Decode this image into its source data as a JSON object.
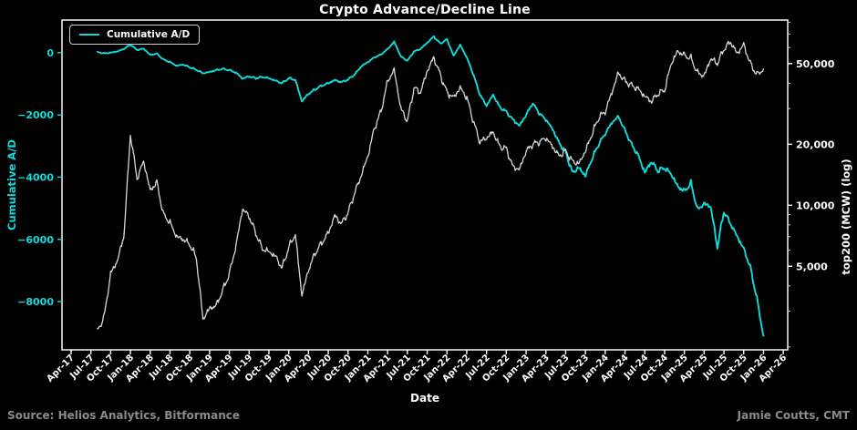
{
  "title": "Crypto Advance/Decline Line",
  "colors": {
    "background": "#000000",
    "cyan": "#0edcdc",
    "white_series": "#d8d8d8",
    "spine": "#e8e8e8",
    "muted_gray": "#8a8a8a"
  },
  "legend": {
    "items": [
      {
        "label": "Cumulative A/D",
        "color": "#0edcdc"
      }
    ]
  },
  "footer": {
    "source": "Source: Helios Analytics, Bitformance",
    "credit": "Jamie Coutts, CMT"
  },
  "chart_data": {
    "type": "line",
    "title": "Crypto Advance/Decline Line",
    "xlabel": "Date",
    "grid": false,
    "legend_position": "upper left",
    "x_axis": {
      "min": 2017.135,
      "max": 2026.306,
      "ticks": [
        [
          2017.25,
          "Apr-17"
        ],
        [
          2017.5,
          "Jul-17"
        ],
        [
          2017.75,
          "Oct-17"
        ],
        [
          2018.0,
          "Jan-18"
        ],
        [
          2018.25,
          "Apr-18"
        ],
        [
          2018.5,
          "Jul-18"
        ],
        [
          2018.75,
          "Oct-18"
        ],
        [
          2019.0,
          "Jan-19"
        ],
        [
          2019.25,
          "Apr-19"
        ],
        [
          2019.5,
          "Jul-19"
        ],
        [
          2019.75,
          "Oct-19"
        ],
        [
          2020.0,
          "Jan-20"
        ],
        [
          2020.25,
          "Apr-20"
        ],
        [
          2020.5,
          "Jul-20"
        ],
        [
          2020.75,
          "Oct-20"
        ],
        [
          2021.0,
          "Jan-21"
        ],
        [
          2021.25,
          "Apr-21"
        ],
        [
          2021.5,
          "Jul-21"
        ],
        [
          2021.75,
          "Oct-21"
        ],
        [
          2022.0,
          "Jan-22"
        ],
        [
          2022.25,
          "Apr-22"
        ],
        [
          2022.5,
          "Jul-22"
        ],
        [
          2022.75,
          "Oct-22"
        ],
        [
          2023.0,
          "Jan-23"
        ],
        [
          2023.25,
          "Apr-23"
        ],
        [
          2023.5,
          "Jul-23"
        ],
        [
          2023.75,
          "Oct-23"
        ],
        [
          2024.0,
          "Jan-24"
        ],
        [
          2024.25,
          "Apr-24"
        ],
        [
          2024.5,
          "Jul-24"
        ],
        [
          2024.75,
          "Oct-24"
        ],
        [
          2025.0,
          "Jan-25"
        ],
        [
          2025.25,
          "Apr-25"
        ],
        [
          2025.5,
          "Jul-25"
        ],
        [
          2025.75,
          "Oct-25"
        ],
        [
          2026.0,
          "Jan-26"
        ],
        [
          2026.25,
          "Apr-26"
        ]
      ]
    },
    "left_axis": {
      "label": "Cumulative A/D",
      "color": "#0edcdc",
      "scale": "linear",
      "min": -9550,
      "max": 1050,
      "ticks": [
        [
          0,
          "0"
        ],
        [
          -2000,
          "−2000"
        ],
        [
          -4000,
          "−4000"
        ],
        [
          -6000,
          "−6000"
        ],
        [
          -8000,
          "−8000"
        ]
      ]
    },
    "right_axis": {
      "label": "top200 (MCW) (log)",
      "color": "#ffffff",
      "scale": "log",
      "min": 1935,
      "max": 82000,
      "ticks": [
        [
          50000,
          "50,000"
        ],
        [
          20000,
          "20,000"
        ],
        [
          10000,
          "10,000"
        ],
        [
          5000,
          "5,000"
        ]
      ]
    },
    "series": [
      {
        "name": "Cumulative A/D",
        "axis": "left",
        "color": "#0edcdc",
        "width": 1.9,
        "points": [
          [
            "2017-08",
            20
          ],
          [
            "2017-09",
            -20
          ],
          [
            "2017-10",
            0
          ],
          [
            "2017-11",
            40
          ],
          [
            "2017-12",
            120
          ],
          [
            "2018-01",
            260
          ],
          [
            "2018-02",
            90
          ],
          [
            "2018-03",
            130
          ],
          [
            "2018-04",
            -70
          ],
          [
            "2018-05",
            -30
          ],
          [
            "2018-06",
            -220
          ],
          [
            "2018-07",
            -300
          ],
          [
            "2018-08",
            -420
          ],
          [
            "2018-09",
            -380
          ],
          [
            "2018-10",
            -470
          ],
          [
            "2018-11",
            -550
          ],
          [
            "2018-12",
            -660
          ],
          [
            "2019-01",
            -620
          ],
          [
            "2019-02",
            -560
          ],
          [
            "2019-03",
            -520
          ],
          [
            "2019-04",
            -560
          ],
          [
            "2019-05",
            -640
          ],
          [
            "2019-06",
            -830
          ],
          [
            "2019-07",
            -760
          ],
          [
            "2019-08",
            -820
          ],
          [
            "2019-09",
            -780
          ],
          [
            "2019-10",
            -820
          ],
          [
            "2019-11",
            -900
          ],
          [
            "2019-12",
            -980
          ],
          [
            "2020-01",
            -820
          ],
          [
            "2020-02",
            -870
          ],
          [
            "2020-03",
            -1560
          ],
          [
            "2020-04",
            -1320
          ],
          [
            "2020-05",
            -1180
          ],
          [
            "2020-06",
            -1060
          ],
          [
            "2020-07",
            -980
          ],
          [
            "2020-08",
            -880
          ],
          [
            "2020-09",
            -950
          ],
          [
            "2020-10",
            -860
          ],
          [
            "2020-11",
            -700
          ],
          [
            "2020-12",
            -440
          ],
          [
            "2021-01",
            -300
          ],
          [
            "2021-02",
            -150
          ],
          [
            "2021-03",
            -60
          ],
          [
            "2021-04",
            120
          ],
          [
            "2021-05",
            350
          ],
          [
            "2021-06",
            -120
          ],
          [
            "2021-07",
            -260
          ],
          [
            "2021-08",
            40
          ],
          [
            "2021-09",
            120
          ],
          [
            "2021-10",
            320
          ],
          [
            "2021-11",
            520
          ],
          [
            "2021-12",
            290
          ],
          [
            "2022-01",
            430
          ],
          [
            "2022-02",
            -100
          ],
          [
            "2022-03",
            250
          ],
          [
            "2022-04",
            -150
          ],
          [
            "2022-05",
            -700
          ],
          [
            "2022-06",
            -1350
          ],
          [
            "2022-07",
            -1700
          ],
          [
            "2022-08",
            -1350
          ],
          [
            "2022-09",
            -1750
          ],
          [
            "2022-10",
            -1900
          ],
          [
            "2022-11",
            -2150
          ],
          [
            "2022-12",
            -2350
          ],
          [
            "2023-01",
            -2000
          ],
          [
            "2023-02",
            -1620
          ],
          [
            "2023-03",
            -1950
          ],
          [
            "2023-04",
            -2150
          ],
          [
            "2023-05",
            -2450
          ],
          [
            "2023-06",
            -2900
          ],
          [
            "2023-07",
            -3200
          ],
          [
            "2023-08",
            -3850
          ],
          [
            "2023-09",
            -3700
          ],
          [
            "2023-10",
            -3950
          ],
          [
            "2023-11",
            -3400
          ],
          [
            "2023-12",
            -2950
          ],
          [
            "2024-01",
            -2600
          ],
          [
            "2024-02",
            -2250
          ],
          [
            "2024-03",
            -2050
          ],
          [
            "2024-04",
            -2500
          ],
          [
            "2024-05",
            -2950
          ],
          [
            "2024-06",
            -3300
          ],
          [
            "2024-07",
            -3850
          ],
          [
            "2024-08",
            -3500
          ],
          [
            "2024-09",
            -3800
          ],
          [
            "2024-10",
            -3700
          ],
          [
            "2024-11",
            -3900
          ],
          [
            "2024-12",
            -4300
          ],
          [
            "2025-01",
            -4450
          ],
          [
            "2025-02",
            -4200
          ],
          [
            "2025-03",
            -5050
          ],
          [
            "2025-04",
            -4850
          ],
          [
            "2025-05",
            -4950
          ],
          [
            "2025-06",
            -6250
          ],
          [
            "2025-07",
            -5100
          ],
          [
            "2025-08",
            -5500
          ],
          [
            "2025-09",
            -5900
          ],
          [
            "2025-10",
            -6300
          ],
          [
            "2025-11",
            -6900
          ],
          [
            "2025-12",
            -7900
          ],
          [
            "2026-01",
            -9100
          ]
        ]
      },
      {
        "name": "top200 (MCW)",
        "axis": "right",
        "color": "#d8d8d8",
        "width": 1.3,
        "points": [
          [
            "2017-08",
            2400
          ],
          [
            "2017-09",
            2800
          ],
          [
            "2017-10",
            4600
          ],
          [
            "2017-11",
            5300
          ],
          [
            "2017-12",
            7000
          ],
          [
            "2018-01",
            22500
          ],
          [
            "2018-02",
            13500
          ],
          [
            "2018-03",
            16500
          ],
          [
            "2018-04",
            11800
          ],
          [
            "2018-05",
            13000
          ],
          [
            "2018-06",
            9000
          ],
          [
            "2018-07",
            8200
          ],
          [
            "2018-08",
            7000
          ],
          [
            "2018-09",
            6800
          ],
          [
            "2018-10",
            6400
          ],
          [
            "2018-11",
            5500
          ],
          [
            "2018-12",
            2750
          ],
          [
            "2019-01",
            3100
          ],
          [
            "2019-02",
            3200
          ],
          [
            "2019-03",
            3800
          ],
          [
            "2019-04",
            4600
          ],
          [
            "2019-05",
            6300
          ],
          [
            "2019-06",
            9600
          ],
          [
            "2019-07",
            8800
          ],
          [
            "2019-08",
            7300
          ],
          [
            "2019-09",
            6100
          ],
          [
            "2019-10",
            5900
          ],
          [
            "2019-11",
            5600
          ],
          [
            "2019-12",
            4900
          ],
          [
            "2020-01",
            6200
          ],
          [
            "2020-02",
            7200
          ],
          [
            "2020-03",
            3600
          ],
          [
            "2020-04",
            4800
          ],
          [
            "2020-05",
            5800
          ],
          [
            "2020-06",
            6500
          ],
          [
            "2020-07",
            7300
          ],
          [
            "2020-08",
            8900
          ],
          [
            "2020-09",
            8100
          ],
          [
            "2020-10",
            9200
          ],
          [
            "2020-11",
            11500
          ],
          [
            "2020-12",
            14000
          ],
          [
            "2021-01",
            17500
          ],
          [
            "2021-02",
            24000
          ],
          [
            "2021-03",
            29000
          ],
          [
            "2021-04",
            41000
          ],
          [
            "2021-05",
            46500
          ],
          [
            "2021-06",
            30000
          ],
          [
            "2021-07",
            26000
          ],
          [
            "2021-08",
            38000
          ],
          [
            "2021-09",
            36000
          ],
          [
            "2021-10",
            46000
          ],
          [
            "2021-11",
            53500
          ],
          [
            "2021-12",
            44000
          ],
          [
            "2022-01",
            36000
          ],
          [
            "2022-02",
            34000
          ],
          [
            "2022-03",
            38000
          ],
          [
            "2022-04",
            34000
          ],
          [
            "2022-05",
            26000
          ],
          [
            "2022-06",
            20500
          ],
          [
            "2022-07",
            21500
          ],
          [
            "2022-08",
            23000
          ],
          [
            "2022-09",
            19500
          ],
          [
            "2022-10",
            19000
          ],
          [
            "2022-11",
            15500
          ],
          [
            "2022-12",
            15000
          ],
          [
            "2023-01",
            18500
          ],
          [
            "2023-02",
            20000
          ],
          [
            "2023-03",
            20500
          ],
          [
            "2023-04",
            21500
          ],
          [
            "2023-05",
            19500
          ],
          [
            "2023-06",
            17500
          ],
          [
            "2023-07",
            18500
          ],
          [
            "2023-08",
            16500
          ],
          [
            "2023-09",
            16000
          ],
          [
            "2023-10",
            18500
          ],
          [
            "2023-11",
            22500
          ],
          [
            "2023-12",
            27000
          ],
          [
            "2024-01",
            29000
          ],
          [
            "2024-02",
            36000
          ],
          [
            "2024-03",
            45000
          ],
          [
            "2024-04",
            41000
          ],
          [
            "2024-05",
            39000
          ],
          [
            "2024-06",
            37500
          ],
          [
            "2024-07",
            34500
          ],
          [
            "2024-08",
            32500
          ],
          [
            "2024-09",
            35500
          ],
          [
            "2024-10",
            37000
          ],
          [
            "2024-11",
            50000
          ],
          [
            "2024-12",
            57500
          ],
          [
            "2025-01",
            55000
          ],
          [
            "2025-02",
            53000
          ],
          [
            "2025-03",
            45000
          ],
          [
            "2025-04",
            43500
          ],
          [
            "2025-05",
            53000
          ],
          [
            "2025-06",
            50000
          ],
          [
            "2025-07",
            59000
          ],
          [
            "2025-08",
            64000
          ],
          [
            "2025-09",
            56000
          ],
          [
            "2025-10",
            62000
          ],
          [
            "2025-11",
            50000
          ],
          [
            "2025-12",
            44000
          ],
          [
            "2026-01",
            47000
          ]
        ]
      }
    ]
  }
}
